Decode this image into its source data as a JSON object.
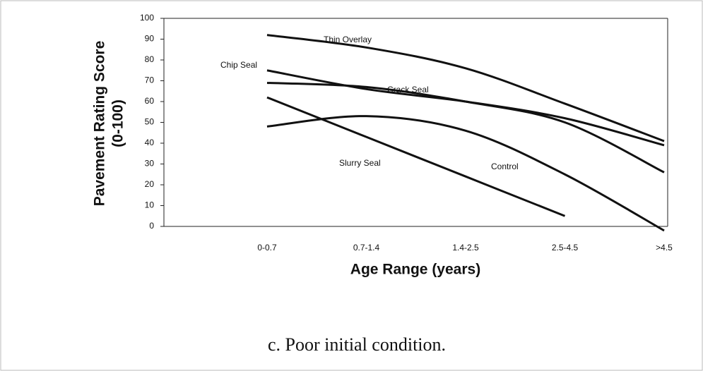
{
  "chart_data": {
    "type": "line",
    "caption": "c. Poor initial condition.",
    "x_label": "Age Range (years)",
    "y_label": [
      "Pavement Rating Score",
      "(0-100)"
    ],
    "categories": [
      "0-0.7",
      "0.7-1.4",
      "1.4-2.5",
      "2.5-4.5",
      ">4.5"
    ],
    "series": [
      {
        "name": "Thin Overlay",
        "color": "#111111",
        "values": [
          92,
          86,
          76,
          59,
          41
        ]
      },
      {
        "name": "Chip Seal",
        "color": "#111111",
        "values": [
          75,
          66,
          60,
          52,
          39
        ]
      },
      {
        "name": "Crack Seal",
        "color": "#111111",
        "values": [
          69,
          67,
          60,
          50,
          26
        ]
      },
      {
        "name": "Slurry Seal",
        "color": "#111111",
        "values": [
          62,
          43,
          24,
          5,
          null
        ]
      },
      {
        "name": "Control",
        "color": "#111111",
        "values": [
          48,
          53,
          46,
          25,
          -2
        ]
      }
    ],
    "ylim": [
      0,
      100
    ],
    "yticks": [
      0,
      10,
      20,
      30,
      40,
      50,
      60,
      70,
      80,
      90,
      100
    ]
  }
}
